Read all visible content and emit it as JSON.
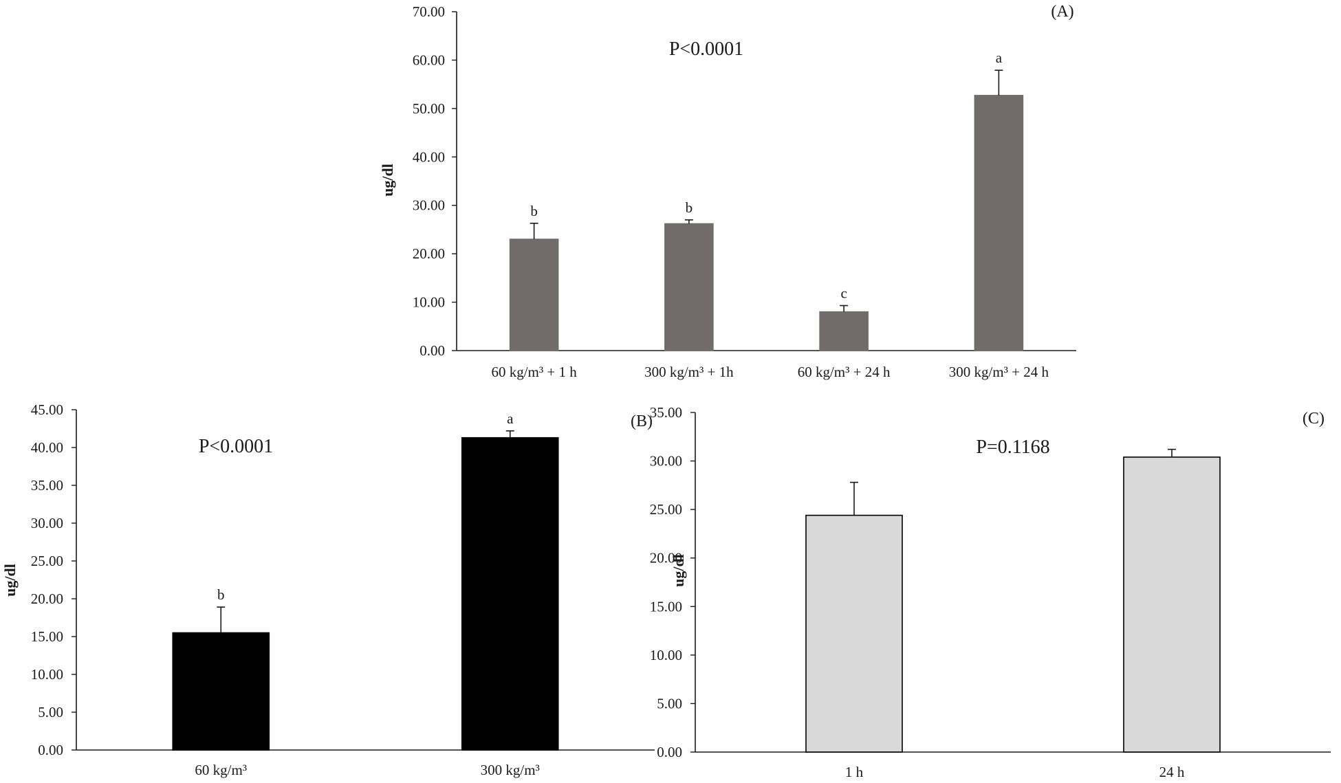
{
  "chart_data": [
    {
      "type": "bar",
      "panel": "(A)",
      "annotation": "P<0.0001",
      "ylabel": "ug/dl",
      "xlabel": "",
      "ylim": [
        0,
        70
      ],
      "ytick_step": 10,
      "ytick_labels": [
        "0.00",
        "10.00",
        "20.00",
        "30.00",
        "40.00",
        "50.00",
        "60.00",
        "70.00"
      ],
      "categories": [
        "60 kg/m³ + 1 h",
        "300 kg/m³ + 1h",
        "60 kg/m³ + 24 h",
        "300 kg/m³ + 24 h"
      ],
      "values": [
        23.0,
        26.2,
        8.0,
        52.7
      ],
      "errors": [
        3.3,
        0.8,
        1.3,
        5.2
      ],
      "letters": [
        "b",
        "b",
        "c",
        "a"
      ],
      "bar_color": "#716c6b",
      "bar_stroke": "#716c6b",
      "grid": false,
      "legend": "none"
    },
    {
      "type": "bar",
      "panel": "(B)",
      "annotation": "P<0.0001",
      "ylabel": "ug/dl",
      "xlabel": "",
      "ylim": [
        0,
        45
      ],
      "ytick_step": 5,
      "ytick_labels": [
        "0.00",
        "5.00",
        "10.00",
        "15.00",
        "20.00",
        "25.00",
        "30.00",
        "35.00",
        "40.00",
        "45.00"
      ],
      "categories": [
        "60 kg/m³",
        "300 kg/m³"
      ],
      "values": [
        15.5,
        41.3
      ],
      "errors": [
        3.4,
        0.9
      ],
      "letters": [
        "b",
        "a"
      ],
      "bar_color": "#000000",
      "bar_stroke": "#000000",
      "grid": false,
      "legend": "none"
    },
    {
      "type": "bar",
      "panel": "(C)",
      "annotation": "P=0.1168",
      "ylabel": "ug/dl",
      "xlabel": "",
      "ylim": [
        0,
        35
      ],
      "ytick_step": 5,
      "ytick_labels": [
        "0.00",
        "5.00",
        "10.00",
        "15.00",
        "20.00",
        "25.00",
        "30.00",
        "35.00"
      ],
      "categories": [
        "1 h",
        "24 h"
      ],
      "values": [
        24.4,
        30.4
      ],
      "errors": [
        3.4,
        0.8
      ],
      "letters": [
        "",
        ""
      ],
      "bar_color": "#d9d9d9",
      "bar_stroke": "#000000",
      "grid": false,
      "legend": "none"
    }
  ]
}
